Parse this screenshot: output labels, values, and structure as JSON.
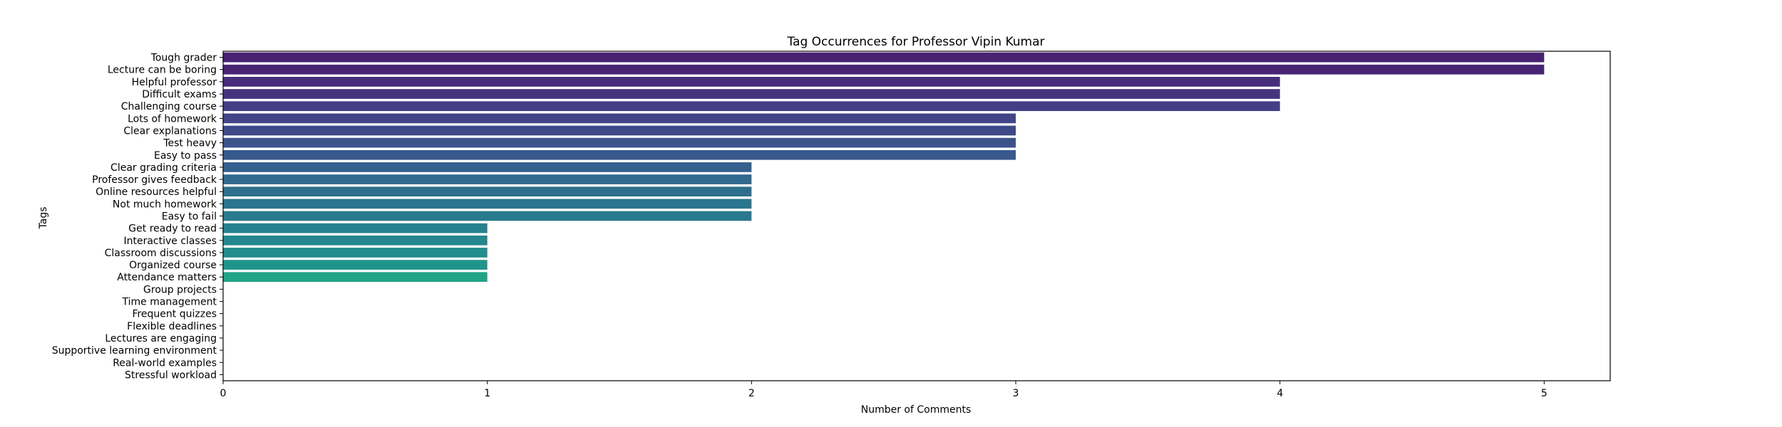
{
  "chart_data": {
    "type": "bar",
    "orientation": "horizontal",
    "title": "Tag Occurrences for Professor Vipin Kumar",
    "xlabel": "Number of Comments",
    "ylabel": "Tags",
    "xlim": [
      0,
      5.25
    ],
    "xticks": [
      0,
      1,
      2,
      3,
      4,
      5
    ],
    "grid": false,
    "legend": "none",
    "palette": "viridis",
    "categories": [
      "Tough grader",
      "Lecture can be boring",
      "Helpful professor",
      "Difficult exams",
      "Challenging course",
      "Lots of homework",
      "Clear explanations",
      "Test heavy",
      "Easy to pass",
      "Clear grading criteria",
      "Professor gives feedback",
      "Online resources helpful",
      "Not much homework",
      "Easy to fail",
      "Get ready to read",
      "Interactive classes",
      "Classroom discussions",
      "Organized course",
      "Attendance matters",
      "Group projects",
      "Time management",
      "Frequent quizzes",
      "Flexible deadlines",
      "Lectures are engaging",
      "Supportive learning environment",
      "Real-world examples",
      "Stressful workload"
    ],
    "values": [
      5,
      5,
      4,
      4,
      4,
      3,
      3,
      3,
      3,
      2,
      2,
      2,
      2,
      2,
      1,
      1,
      1,
      1,
      1,
      0,
      0,
      0,
      0,
      0,
      0,
      0,
      0
    ],
    "colors": [
      "#482173",
      "#482374",
      "#472d7b",
      "#46337e",
      "#433e85",
      "#414487",
      "#3e4989",
      "#3b528b",
      "#38598c",
      "#355f8d",
      "#31688e",
      "#2e6f8e",
      "#2b758e",
      "#297a8e",
      "#26828e",
      "#24878e",
      "#228d8d",
      "#1f948c",
      "#20a386",
      "#2db27d",
      "#3bbb75",
      "#4ac16d",
      "#5ec962",
      "#73d056",
      "#8bd646",
      "#a5db36",
      "#c2df23"
    ]
  }
}
